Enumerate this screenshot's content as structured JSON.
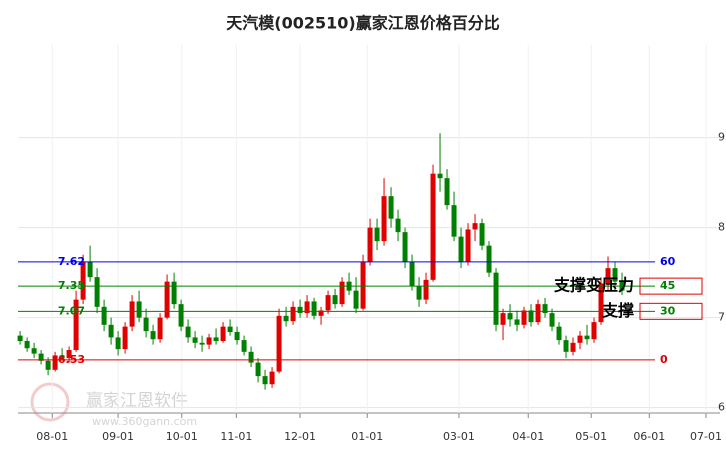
{
  "chart_data": {
    "type": "candlestick",
    "title": "天汽模(002510)赢家江恩价格百分比",
    "watermark": "赢家江恩软件",
    "watermark_url": "www.360gann.com",
    "up_color": "#e00000",
    "down_color": "#008000",
    "ylim": [
      5.94,
      10.03
    ],
    "yticks": [
      6,
      7,
      8,
      9
    ],
    "xlim": [
      -0.3,
      100
    ],
    "xticks": [
      {
        "value": 4.6,
        "label": "08-01"
      },
      {
        "value": 14,
        "label": "09-01"
      },
      {
        "value": 23.1,
        "label": "10-01"
      },
      {
        "value": 30.9,
        "label": "11-01"
      },
      {
        "value": 40,
        "label": "12-01"
      },
      {
        "value": 49.6,
        "label": "01-01"
      },
      {
        "value": 62.7,
        "label": "03-01"
      },
      {
        "value": 72.6,
        "label": "04-01"
      },
      {
        "value": 81.6,
        "label": "05-01"
      },
      {
        "value": 89.9,
        "label": "06-01"
      },
      {
        "value": 98,
        "label": "07-01"
      }
    ],
    "grid": true,
    "levels": [
      {
        "value": 7.62,
        "percent": 60,
        "color": "#0000ee"
      },
      {
        "value": 7.35,
        "percent": 45,
        "color": "#008000",
        "note": "支撑变压力"
      },
      {
        "value": 7.07,
        "percent": 30,
        "color": "#008000",
        "note": "支撑"
      },
      {
        "value": 6.53,
        "percent": 0,
        "color": "#e00000"
      }
    ],
    "candles": [
      [
        6.8,
        6.85,
        6.7,
        6.74
      ],
      [
        6.74,
        6.78,
        6.62,
        6.66
      ],
      [
        6.66,
        6.72,
        6.55,
        6.6
      ],
      [
        6.6,
        6.64,
        6.48,
        6.52
      ],
      [
        6.52,
        6.56,
        6.36,
        6.42
      ],
      [
        6.42,
        6.62,
        6.4,
        6.58
      ],
      [
        6.58,
        6.66,
        6.52,
        6.55
      ],
      [
        6.55,
        6.68,
        6.5,
        6.64
      ],
      [
        6.64,
        7.3,
        6.62,
        7.2
      ],
      [
        7.2,
        7.7,
        7.15,
        7.62
      ],
      [
        7.62,
        7.8,
        7.4,
        7.45
      ],
      [
        7.45,
        7.55,
        7.05,
        7.12
      ],
      [
        7.12,
        7.2,
        6.85,
        6.92
      ],
      [
        6.92,
        7.0,
        6.7,
        6.78
      ],
      [
        6.78,
        6.85,
        6.58,
        6.65
      ],
      [
        6.65,
        6.95,
        6.6,
        6.9
      ],
      [
        6.9,
        7.25,
        6.85,
        7.18
      ],
      [
        7.18,
        7.3,
        6.95,
        7.0
      ],
      [
        7.0,
        7.1,
        6.78,
        6.85
      ],
      [
        6.85,
        6.92,
        6.7,
        6.76
      ],
      [
        6.76,
        7.05,
        6.72,
        7.0
      ],
      [
        7.0,
        7.48,
        6.98,
        7.4
      ],
      [
        7.4,
        7.5,
        7.1,
        7.15
      ],
      [
        7.15,
        7.2,
        6.85,
        6.9
      ],
      [
        6.9,
        6.98,
        6.72,
        6.78
      ],
      [
        6.78,
        6.85,
        6.66,
        6.72
      ],
      [
        6.72,
        6.8,
        6.62,
        6.7
      ],
      [
        6.7,
        6.82,
        6.65,
        6.78
      ],
      [
        6.78,
        6.88,
        6.7,
        6.74
      ],
      [
        6.74,
        6.95,
        6.72,
        6.9
      ],
      [
        6.9,
        6.98,
        6.8,
        6.84
      ],
      [
        6.84,
        6.9,
        6.7,
        6.75
      ],
      [
        6.75,
        6.8,
        6.58,
        6.62
      ],
      [
        6.62,
        6.68,
        6.45,
        6.5
      ],
      [
        6.5,
        6.55,
        6.28,
        6.35
      ],
      [
        6.35,
        6.42,
        6.2,
        6.26
      ],
      [
        6.26,
        6.45,
        6.22,
        6.4
      ],
      [
        6.4,
        7.1,
        6.38,
        7.02
      ],
      [
        7.02,
        7.12,
        6.9,
        6.96
      ],
      [
        6.96,
        7.18,
        6.92,
        7.12
      ],
      [
        7.12,
        7.2,
        7.0,
        7.05
      ],
      [
        7.05,
        7.25,
        7.0,
        7.18
      ],
      [
        7.18,
        7.22,
        6.98,
        7.02
      ],
      [
        7.02,
        7.12,
        6.92,
        7.08
      ],
      [
        7.08,
        7.3,
        7.04,
        7.25
      ],
      [
        7.25,
        7.32,
        7.1,
        7.15
      ],
      [
        7.15,
        7.45,
        7.12,
        7.4
      ],
      [
        7.4,
        7.5,
        7.25,
        7.3
      ],
      [
        7.3,
        7.45,
        7.05,
        7.1
      ],
      [
        7.1,
        7.7,
        7.08,
        7.62
      ],
      [
        7.62,
        8.1,
        7.58,
        8.0
      ],
      [
        8.0,
        8.1,
        7.75,
        7.85
      ],
      [
        7.85,
        8.55,
        7.8,
        8.35
      ],
      [
        8.35,
        8.45,
        8.0,
        8.1
      ],
      [
        8.1,
        8.2,
        7.85,
        7.95
      ],
      [
        7.95,
        8.0,
        7.55,
        7.62
      ],
      [
        7.62,
        7.7,
        7.3,
        7.35
      ],
      [
        7.35,
        7.45,
        7.12,
        7.2
      ],
      [
        7.2,
        7.5,
        7.15,
        7.42
      ],
      [
        7.42,
        8.7,
        7.4,
        8.6
      ],
      [
        8.6,
        9.05,
        8.4,
        8.55
      ],
      [
        8.55,
        8.65,
        8.2,
        8.25
      ],
      [
        8.25,
        8.4,
        7.85,
        7.9
      ],
      [
        7.9,
        8.0,
        7.55,
        7.62
      ],
      [
        7.62,
        8.05,
        7.58,
        7.98
      ],
      [
        7.98,
        8.15,
        7.85,
        8.05
      ],
      [
        8.05,
        8.1,
        7.75,
        7.8
      ],
      [
        7.8,
        7.85,
        7.45,
        7.5
      ],
      [
        7.5,
        7.55,
        6.85,
        6.92
      ],
      [
        6.92,
        7.1,
        6.75,
        7.05
      ],
      [
        7.05,
        7.15,
        6.9,
        6.98
      ],
      [
        6.98,
        7.08,
        6.85,
        6.92
      ],
      [
        6.92,
        7.12,
        6.88,
        7.08
      ],
      [
        7.08,
        7.15,
        6.9,
        6.95
      ],
      [
        6.95,
        7.2,
        6.92,
        7.15
      ],
      [
        7.15,
        7.22,
        7.0,
        7.05
      ],
      [
        7.05,
        7.1,
        6.85,
        6.9
      ],
      [
        6.9,
        6.95,
        6.7,
        6.75
      ],
      [
        6.75,
        6.8,
        6.55,
        6.62
      ],
      [
        6.62,
        6.78,
        6.58,
        6.72
      ],
      [
        6.72,
        6.85,
        6.65,
        6.8
      ],
      [
        6.8,
        6.92,
        6.7,
        6.76
      ],
      [
        6.76,
        7.0,
        6.72,
        6.95
      ],
      [
        6.95,
        7.45,
        6.92,
        7.38
      ],
      [
        7.38,
        7.68,
        7.3,
        7.55
      ],
      [
        7.55,
        7.62,
        7.3,
        7.4
      ],
      [
        7.4,
        7.5,
        7.25,
        7.3
      ]
    ]
  }
}
